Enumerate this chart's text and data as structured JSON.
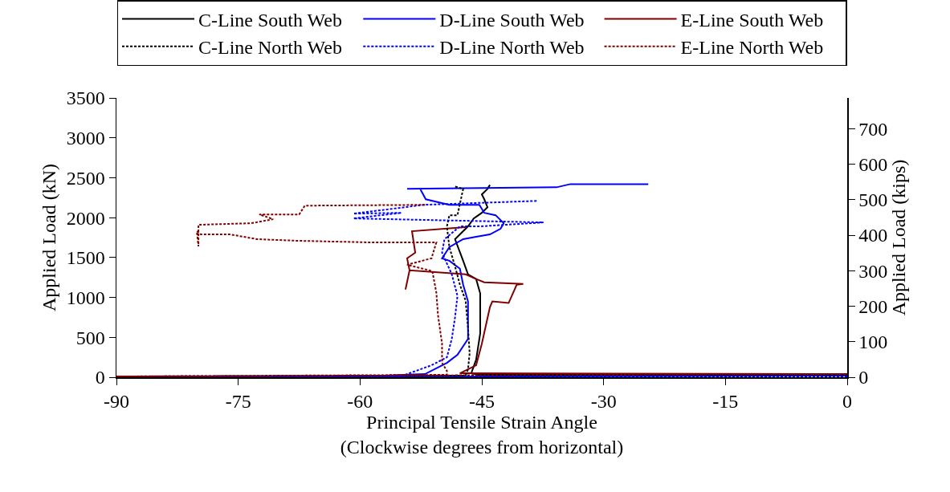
{
  "chart_data": {
    "type": "line",
    "xlabel": "Principal Tensile Strain Angle\n(Clockwise degrees from horizontal)",
    "ylabel": "Applied Load (kN)",
    "y2label": "Applied Load (kips)",
    "xlim": [
      -90,
      0
    ],
    "xticks": [
      -90,
      -75,
      -60,
      -45,
      -30,
      -15,
      0
    ],
    "ylim": [
      0,
      3500
    ],
    "yticks": [
      0,
      500,
      1000,
      1500,
      2000,
      2500,
      3000,
      3500
    ],
    "y2lim": [
      0,
      786.8
    ],
    "y2ticks": [
      0,
      100,
      200,
      300,
      400,
      500,
      600,
      700
    ],
    "grid": false,
    "legend": "top",
    "marker": "none",
    "series": [
      {
        "name": "C-Line South Web",
        "color": "#000000",
        "line_style": "solid",
        "x": [
          0,
          -45.5,
          -46.3,
          -45.7,
          -45.2,
          -45.2,
          -45.7,
          -46.7,
          -47.3,
          -48.3,
          -47.7,
          -46.7,
          -46.0,
          -45.0,
          -44.3,
          -44.7,
          -45.0,
          -44.3,
          -44.0
        ],
        "values": [
          30,
          30,
          50,
          220,
          550,
          1050,
          1230,
          1290,
          1460,
          1730,
          1790,
          1890,
          1990,
          2060,
          2130,
          2230,
          2290,
          2360,
          2410
        ]
      },
      {
        "name": "D-Line South Web",
        "color": "#0000ff",
        "line_style": "solid",
        "x": [
          0,
          -90,
          -60,
          -52,
          -49.3,
          -48,
          -46.7,
          -46.7,
          -47.3,
          -47.7,
          -49.0,
          -49.9,
          -49.0,
          -47.3,
          -45.7,
          -44.0,
          -42.7,
          -42.3,
          -43.3,
          -44.7,
          -45.3,
          -49,
          -51.9,
          -52.6,
          -54.2,
          -35.8,
          -34.1,
          -24.5
        ],
        "values": [
          20,
          0,
          10,
          40,
          180,
          280,
          480,
          950,
          1160,
          1360,
          1460,
          1490,
          1630,
          1730,
          1760,
          1790,
          1860,
          1930,
          2030,
          2060,
          2160,
          2160,
          2230,
          2360,
          2360,
          2380,
          2420,
          2420
        ]
      },
      {
        "name": "E-Line South Web",
        "color": "#800000",
        "line_style": "solid",
        "x": [
          0,
          -47.7,
          -45.7,
          -45.0,
          -44.0,
          -43.7,
          -41.7,
          -40.7,
          -39.9,
          -44.7,
          -45.7,
          -47.0,
          -53.9,
          -54.4,
          -53.9,
          -54.2,
          -53.2,
          -53.6,
          -47.0
        ],
        "values": [
          40,
          50,
          150,
          420,
          880,
          950,
          930,
          1160,
          1170,
          1190,
          1230,
          1290,
          1340,
          1100,
          1340,
          1490,
          1560,
          1830,
          1880
        ]
      },
      {
        "name": "C-Line North Web",
        "color": "#000000",
        "line_style": "dotted",
        "x": [
          0,
          -90,
          -47,
          -46.7,
          -46.5,
          -46.7,
          -47.0,
          -47.7,
          -48.3,
          -49.0,
          -49.3,
          -49.0,
          -48.0,
          -47.3,
          -48.3
        ],
        "values": [
          20,
          10,
          20,
          100,
          300,
          620,
          960,
          1160,
          1390,
          1630,
          1890,
          2030,
          2030,
          2360,
          2390
        ]
      },
      {
        "name": "D-Line North Web",
        "color": "#0000ff",
        "line_style": "dotted",
        "x": [
          0,
          -90,
          -55,
          -51.2,
          -49.3,
          -48.7,
          -48.3,
          -48.0,
          -48.7,
          -49.9,
          -49.6,
          -47.7,
          -45.3,
          -37.4,
          -60.8,
          -54.9,
          -60.8,
          -54.5,
          -52.2,
          -38.1
        ],
        "values": [
          10,
          0,
          10,
          150,
          250,
          480,
          750,
          1020,
          1290,
          1560,
          1730,
          1890,
          1890,
          1940,
          1990,
          2060,
          2050,
          2130,
          2160,
          2210
        ]
      },
      {
        "name": "E-Line North Web",
        "color": "#800000",
        "line_style": "dotted",
        "x": [
          0,
          -90,
          -49.3,
          -49.3,
          -49.9,
          -49.9,
          -50.4,
          -50.6,
          -51.1,
          -54.2,
          -51.2,
          -50.9,
          -50.6,
          -58.8,
          -67.7,
          -72.7,
          -76.0,
          -79.6,
          -80.1,
          -79.9,
          -79.9,
          -73.4,
          -70.7,
          -72.4,
          -67.5,
          -66.8,
          -52.0
        ],
        "values": [
          40,
          10,
          30,
          80,
          180,
          420,
          780,
          1060,
          1330,
          1410,
          1490,
          1590,
          1690,
          1690,
          1710,
          1730,
          1790,
          1790,
          1830,
          1640,
          1910,
          1930,
          1980,
          2040,
          2040,
          2150,
          2160
        ]
      }
    ]
  }
}
